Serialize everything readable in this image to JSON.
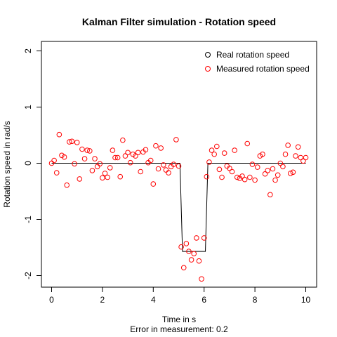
{
  "chart_data": {
    "type": "scatter",
    "title": "Kalman Filter simulation - Rotation speed",
    "xlabel": "Time in s",
    "subtitle": "Error in measurement: 0.2",
    "ylabel": "Rotation speed in rad/s",
    "xlim": [
      0,
      10
    ],
    "ylim": [
      -2,
      2
    ],
    "xticks": [
      "0",
      "2",
      "4",
      "6",
      "8",
      "10"
    ],
    "yticks": [
      "-2",
      "-1",
      "0",
      "1",
      "2"
    ],
    "legend_position": "top-right",
    "legend": [
      {
        "label": "Real rotation speed",
        "color": "#000000"
      },
      {
        "label": "Measured rotation speed",
        "color": "#ff0000"
      }
    ],
    "series": [
      {
        "name": "Real rotation speed",
        "style": "line",
        "color": "#000000",
        "x": [
          0,
          5.05,
          5.15,
          6.05,
          6.15,
          10
        ],
        "y": [
          0,
          0,
          -1.57,
          -1.57,
          0,
          0
        ]
      },
      {
        "name": "Measured rotation speed",
        "style": "points",
        "color": "#ff0000",
        "x": [
          0.0,
          0.1,
          0.2,
          0.3,
          0.4,
          0.5,
          0.6,
          0.7,
          0.8,
          0.9,
          1.0,
          1.1,
          1.2,
          1.3,
          1.4,
          1.5,
          1.6,
          1.7,
          1.8,
          1.9,
          2.0,
          2.1,
          2.2,
          2.3,
          2.4,
          2.5,
          2.6,
          2.7,
          2.8,
          2.9,
          3.0,
          3.1,
          3.2,
          3.3,
          3.4,
          3.5,
          3.6,
          3.7,
          3.8,
          3.9,
          4.0,
          4.1,
          4.2,
          4.3,
          4.4,
          4.5,
          4.6,
          4.7,
          4.8,
          4.9,
          5.0,
          5.1,
          5.2,
          5.3,
          5.4,
          5.5,
          5.6,
          5.7,
          5.8,
          5.9,
          6.0,
          6.1,
          6.2,
          6.3,
          6.4,
          6.5,
          6.6,
          6.7,
          6.8,
          6.9,
          7.0,
          7.1,
          7.2,
          7.3,
          7.4,
          7.5,
          7.6,
          7.7,
          7.8,
          7.9,
          8.0,
          8.1,
          8.2,
          8.3,
          8.4,
          8.5,
          8.6,
          8.7,
          8.8,
          8.9,
          9.0,
          9.1,
          9.2,
          9.3,
          9.4,
          9.5,
          9.6,
          9.7,
          9.8,
          9.9,
          10.0
        ],
        "y": [
          0.0,
          0.05,
          -0.17,
          0.51,
          0.14,
          0.11,
          -0.39,
          0.38,
          0.39,
          -0.01,
          0.37,
          -0.28,
          0.25,
          0.08,
          0.23,
          0.22,
          -0.13,
          0.08,
          -0.06,
          -0.01,
          -0.26,
          -0.18,
          -0.25,
          -0.08,
          0.23,
          0.1,
          0.1,
          -0.24,
          0.41,
          0.13,
          0.19,
          0.01,
          0.16,
          0.13,
          0.19,
          -0.15,
          0.2,
          0.24,
          0.01,
          0.05,
          -0.37,
          0.31,
          -0.1,
          0.27,
          -0.03,
          -0.12,
          -0.17,
          -0.06,
          -0.02,
          0.42,
          -0.05,
          -1.49,
          -1.86,
          -1.43,
          -1.57,
          -1.72,
          -1.61,
          -1.33,
          -1.74,
          -2.06,
          -1.33,
          -0.24,
          0.02,
          0.23,
          0.16,
          0.3,
          -0.11,
          -0.25,
          0.18,
          -0.05,
          -0.09,
          -0.15,
          0.23,
          -0.25,
          -0.27,
          -0.23,
          -0.29,
          0.35,
          -0.25,
          -0.02,
          -0.3,
          -0.07,
          0.13,
          0.16,
          -0.19,
          -0.13,
          -0.56,
          -0.1,
          -0.3,
          -0.21,
          0.0,
          -0.06,
          0.16,
          0.32,
          -0.18,
          -0.16,
          0.13,
          0.29,
          0.1,
          0.04,
          0.1
        ]
      }
    ]
  }
}
